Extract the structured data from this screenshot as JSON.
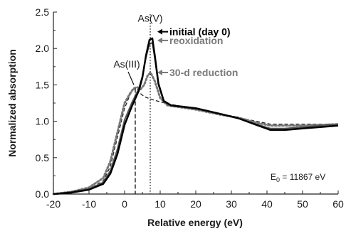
{
  "chart_data": {
    "type": "line",
    "xlabel": "Relative energy (eV)",
    "ylabel": "Normalized absorption",
    "xlim": [
      -20,
      60
    ],
    "ylim": [
      0,
      2.5
    ],
    "x_ticks": [
      -20,
      -10,
      0,
      10,
      20,
      30,
      40,
      50,
      60
    ],
    "y_ticks": [
      0.0,
      0.5,
      1.0,
      1.5,
      2.0,
      2.5
    ],
    "x_tick_labels": [
      "-20",
      "-10",
      "0",
      "10",
      "20",
      "30",
      "40",
      "50",
      "60"
    ],
    "y_tick_labels": [
      "0.0",
      "0.5",
      "1.0",
      "1.5",
      "2.0",
      "2.5"
    ],
    "grid": false,
    "series": [
      {
        "name": "initial (day 0)",
        "color": "#000000",
        "style": "solid",
        "width": 2.5,
        "points": [
          [
            -20,
            0.0
          ],
          [
            -15,
            0.02
          ],
          [
            -10,
            0.06
          ],
          [
            -6,
            0.14
          ],
          [
            -4,
            0.28
          ],
          [
            -2,
            0.55
          ],
          [
            0,
            0.95
          ],
          [
            2,
            1.2
          ],
          [
            4,
            1.42
          ],
          [
            5,
            1.6
          ],
          [
            6,
            1.9
          ],
          [
            7,
            2.12
          ],
          [
            7.8,
            2.14
          ],
          [
            8.5,
            1.9
          ],
          [
            9.5,
            1.52
          ],
          [
            11,
            1.28
          ],
          [
            13,
            1.22
          ],
          [
            20,
            1.18
          ],
          [
            27,
            1.1
          ],
          [
            32,
            1.04
          ],
          [
            37,
            0.95
          ],
          [
            41,
            0.88
          ],
          [
            45,
            0.88
          ],
          [
            50,
            0.9
          ],
          [
            55,
            0.92
          ],
          [
            60,
            0.94
          ]
        ]
      },
      {
        "name": "reoxidation",
        "color": "#555555",
        "style": "solid",
        "width": 2,
        "points": [
          [
            -20,
            0.0
          ],
          [
            -15,
            0.03
          ],
          [
            -10,
            0.07
          ],
          [
            -6,
            0.16
          ],
          [
            -4,
            0.32
          ],
          [
            -2,
            0.62
          ],
          [
            0,
            1.02
          ],
          [
            2,
            1.25
          ],
          [
            4,
            1.45
          ],
          [
            5,
            1.62
          ],
          [
            6,
            1.88
          ],
          [
            7,
            2.06
          ],
          [
            7.8,
            2.08
          ],
          [
            8.5,
            1.86
          ],
          [
            9.5,
            1.5
          ],
          [
            11,
            1.27
          ],
          [
            13,
            1.21
          ],
          [
            20,
            1.17
          ],
          [
            27,
            1.1
          ],
          [
            32,
            1.04
          ],
          [
            37,
            0.96
          ],
          [
            41,
            0.9
          ],
          [
            45,
            0.9
          ],
          [
            50,
            0.92
          ],
          [
            55,
            0.94
          ],
          [
            60,
            0.96
          ]
        ]
      },
      {
        "name": "30-d reduction",
        "color": "#777777",
        "style": "dotted",
        "width": 3,
        "points": [
          [
            -20,
            0.0
          ],
          [
            -15,
            0.03
          ],
          [
            -10,
            0.09
          ],
          [
            -6,
            0.22
          ],
          [
            -4,
            0.45
          ],
          [
            -2,
            0.85
          ],
          [
            0,
            1.25
          ],
          [
            1.5,
            1.38
          ],
          [
            2.5,
            1.45
          ],
          [
            3.5,
            1.47
          ],
          [
            4.5,
            1.44
          ],
          [
            5.5,
            1.5
          ],
          [
            6.5,
            1.63
          ],
          [
            7.3,
            1.67
          ],
          [
            8.5,
            1.55
          ],
          [
            10,
            1.32
          ],
          [
            12,
            1.22
          ],
          [
            20,
            1.16
          ],
          [
            27,
            1.09
          ],
          [
            32,
            1.05
          ],
          [
            37,
            0.98
          ],
          [
            41,
            0.94
          ],
          [
            45,
            0.94
          ],
          [
            50,
            0.94
          ],
          [
            55,
            0.95
          ],
          [
            60,
            0.96
          ]
        ]
      },
      {
        "name": "",
        "color": "#222222",
        "style": "dashed",
        "width": 1.3,
        "points": [
          [
            -20,
            0.0
          ],
          [
            -15,
            0.02
          ],
          [
            -10,
            0.07
          ],
          [
            -6,
            0.18
          ],
          [
            -4,
            0.38
          ],
          [
            -2,
            0.78
          ],
          [
            0,
            1.18
          ],
          [
            1.5,
            1.36
          ],
          [
            2.5,
            1.44
          ],
          [
            3.5,
            1.45
          ],
          [
            4.5,
            1.38
          ],
          [
            5.5,
            1.34
          ],
          [
            7,
            1.31
          ],
          [
            9,
            1.28
          ],
          [
            12,
            1.24
          ],
          [
            20,
            1.17
          ],
          [
            27,
            1.1
          ],
          [
            32,
            1.05
          ],
          [
            37,
            1.0
          ],
          [
            41,
            0.96
          ],
          [
            45,
            0.96
          ],
          [
            50,
            0.96
          ],
          [
            55,
            0.96
          ],
          [
            60,
            0.96
          ]
        ]
      }
    ],
    "reference_lines": [
      {
        "label": "As(III)",
        "x": 3,
        "y_top": 1.45,
        "style": "dashed"
      },
      {
        "label": "As(V)",
        "x": 7.2,
        "y_top": 2.47,
        "style": "dotted"
      }
    ],
    "annotations": {
      "e0": "E",
      "e0_sub": "0",
      "e0_rest": " = 11867 eV"
    },
    "legend": {
      "placement": "inline-arrows",
      "items": [
        {
          "label": "initial (day 0)",
          "color": "#000000",
          "y": 2.23
        },
        {
          "label": "reoxidation",
          "color": "#7a7a7a",
          "y": 2.11
        },
        {
          "label": "30-d reduction",
          "color": "#7a7a7a",
          "y": 1.67
        }
      ]
    }
  }
}
